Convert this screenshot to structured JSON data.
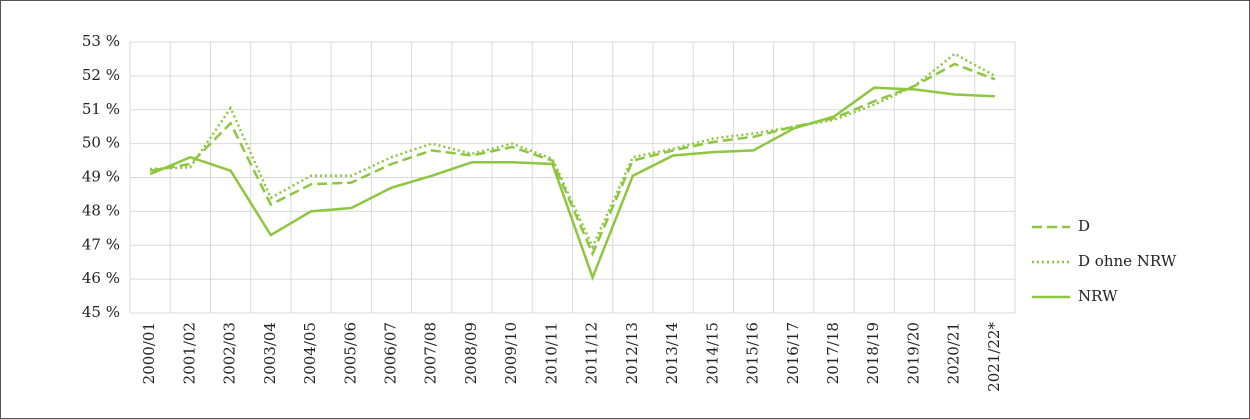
{
  "chart_data": {
    "type": "line",
    "categories": [
      "2000/01",
      "2001/02",
      "2002/03",
      "2003/04",
      "2004/05",
      "2005/06",
      "2006/07",
      "2007/08",
      "2008/09",
      "2009/10",
      "2010/11",
      "2011/12",
      "2012/13",
      "2013/14",
      "2014/15",
      "2015/16",
      "2016/17",
      "2017/18",
      "2018/19",
      "2019/20",
      "2020/21",
      "2021/22*"
    ],
    "series": [
      {
        "name": "D",
        "color": "#8dc63f",
        "style": "dashed",
        "values": [
          49.2,
          49.4,
          50.6,
          48.2,
          48.8,
          48.85,
          49.4,
          49.8,
          49.65,
          49.9,
          49.5,
          46.75,
          49.5,
          49.8,
          50.05,
          50.2,
          50.5,
          50.75,
          51.25,
          51.7,
          52.35,
          51.9
        ]
      },
      {
        "name": "D ohne NRW",
        "color": "#8dc63f",
        "style": "dotted",
        "values": [
          49.25,
          49.3,
          51.05,
          48.4,
          49.05,
          49.05,
          49.6,
          50.0,
          49.7,
          50.0,
          49.55,
          46.95,
          49.6,
          49.85,
          50.15,
          50.3,
          50.5,
          50.7,
          51.15,
          51.7,
          52.65,
          52.0
        ]
      },
      {
        "name": "NRW",
        "color": "#8dc63f",
        "style": "solid",
        "values": [
          49.1,
          49.6,
          49.2,
          47.3,
          48.0,
          48.1,
          48.7,
          49.05,
          49.45,
          49.45,
          49.4,
          46.05,
          49.05,
          49.65,
          49.75,
          49.8,
          50.45,
          50.8,
          51.65,
          51.6,
          51.45,
          51.4
        ]
      }
    ],
    "ylim": [
      45,
      53
    ],
    "yticks": [
      {
        "value": 45,
        "label": "45 %"
      },
      {
        "value": 46,
        "label": "46 %"
      },
      {
        "value": 47,
        "label": "47 %"
      },
      {
        "value": 48,
        "label": "48 %"
      },
      {
        "value": 49,
        "label": "49 %"
      },
      {
        "value": 50,
        "label": "50 %"
      },
      {
        "value": 51,
        "label": "51 %"
      },
      {
        "value": 52,
        "label": "52 %"
      },
      {
        "value": 53,
        "label": "53 %"
      }
    ],
    "grid": true,
    "legend": "right"
  }
}
